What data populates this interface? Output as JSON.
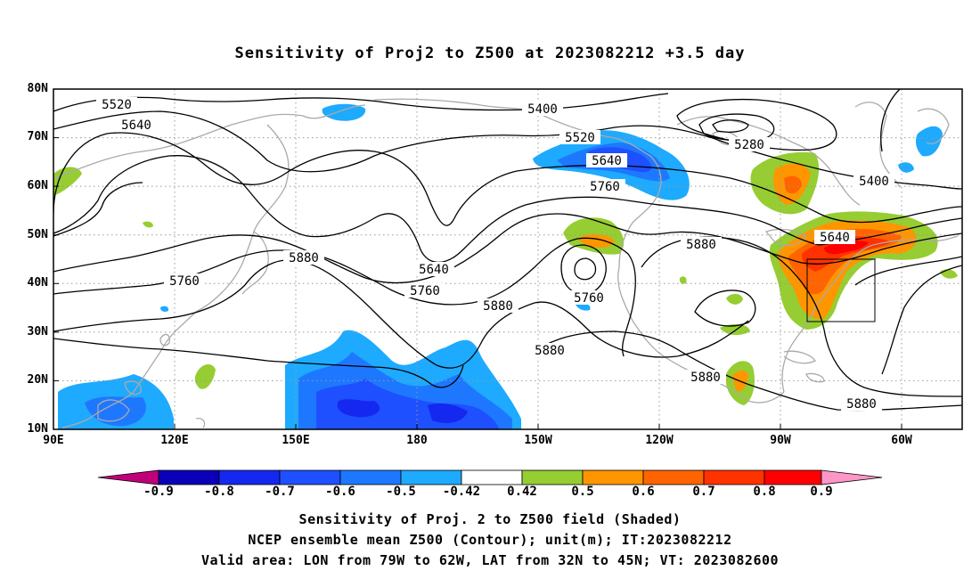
{
  "title": "Sensitivity of Proj2 to Z500 at 2023082212 +3.5 day",
  "captions": [
    "Sensitivity of Proj. 2 to Z500 field (Shaded)",
    "NCEP ensemble mean Z500 (Contour); unit(m); IT:2023082212",
    "Valid area: LON from 79W to 62W, LAT from 32N to 45N; VT: 2023082600"
  ],
  "map": {
    "lat_labels": [
      "80N",
      "70N",
      "60N",
      "50N",
      "40N",
      "30N",
      "20N",
      "10N"
    ],
    "lon_labels": [
      "90E",
      "120E",
      "150E",
      "180",
      "150W",
      "120W",
      "90W",
      "60W"
    ],
    "lat_range": [
      10,
      80
    ],
    "lon_range_east": [
      90,
      315
    ],
    "valid_box": {
      "lon_w": -79,
      "lon_e": -62,
      "lat_s": 32,
      "lat_n": 45
    },
    "grid": "dotted",
    "contour_labels": [
      "5520",
      "5640",
      "5400",
      "5520",
      "5640",
      "5280",
      "5400",
      "5760",
      "5640",
      "5760",
      "5880",
      "5640",
      "5760",
      "5880",
      "5880",
      "5760",
      "5880",
      "5880",
      "5880"
    ]
  },
  "colorbar": {
    "labels": [
      "-0.9",
      "-0.8",
      "-0.7",
      "-0.6",
      "-0.5",
      "-0.42",
      "0.42",
      "0.5",
      "0.6",
      "0.7",
      "0.8",
      "0.9"
    ],
    "colors": [
      "#c0007a",
      "#0a00b8",
      "#1428f0",
      "#1e50ff",
      "#1e78ff",
      "#1eaaff",
      "#ffffff",
      "#96cd32",
      "#ff9600",
      "#ff6400",
      "#ff3200",
      "#ff0000",
      "#ff96c8"
    ]
  }
}
